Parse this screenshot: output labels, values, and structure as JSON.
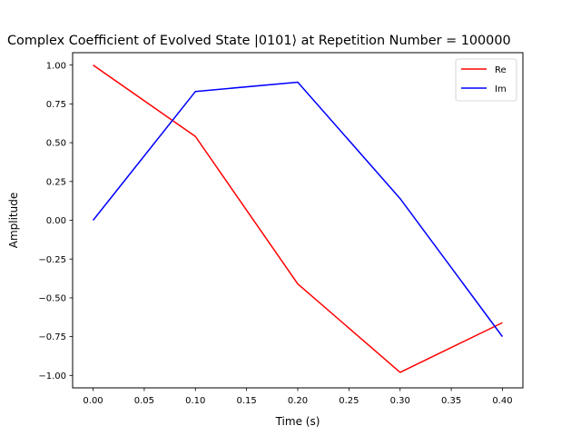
{
  "chart_data": {
    "type": "line",
    "title": "Complex Coefficient of Evolved State |0101⟩ at Repetition Number = 100000",
    "xlabel": "Time (s)",
    "ylabel": "Amplitude",
    "x": [
      0.0,
      0.1,
      0.2,
      0.3,
      0.4
    ],
    "xlim": [
      -0.02,
      0.42
    ],
    "ylim": [
      -1.08,
      1.08
    ],
    "xticks": [
      0.0,
      0.05,
      0.1,
      0.15,
      0.2,
      0.25,
      0.3,
      0.35,
      0.4
    ],
    "xtick_labels": [
      "0.00",
      "0.05",
      "0.10",
      "0.15",
      "0.20",
      "0.25",
      "0.30",
      "0.35",
      "0.40"
    ],
    "yticks": [
      -1.0,
      -0.75,
      -0.5,
      -0.25,
      0.0,
      0.25,
      0.5,
      0.75,
      1.0
    ],
    "ytick_labels": [
      "−1.00",
      "−0.75",
      "−0.50",
      "−0.25",
      "0.00",
      "0.25",
      "0.50",
      "0.75",
      "1.00"
    ],
    "grid": false,
    "legend_position": "top-right",
    "series": [
      {
        "name": "Re",
        "color": "#ff0000",
        "values": [
          1.0,
          0.54,
          -0.41,
          -0.98,
          -0.66
        ]
      },
      {
        "name": "Im",
        "color": "#0000ff",
        "values": [
          0.0,
          0.83,
          0.89,
          0.14,
          -0.75
        ]
      }
    ]
  }
}
